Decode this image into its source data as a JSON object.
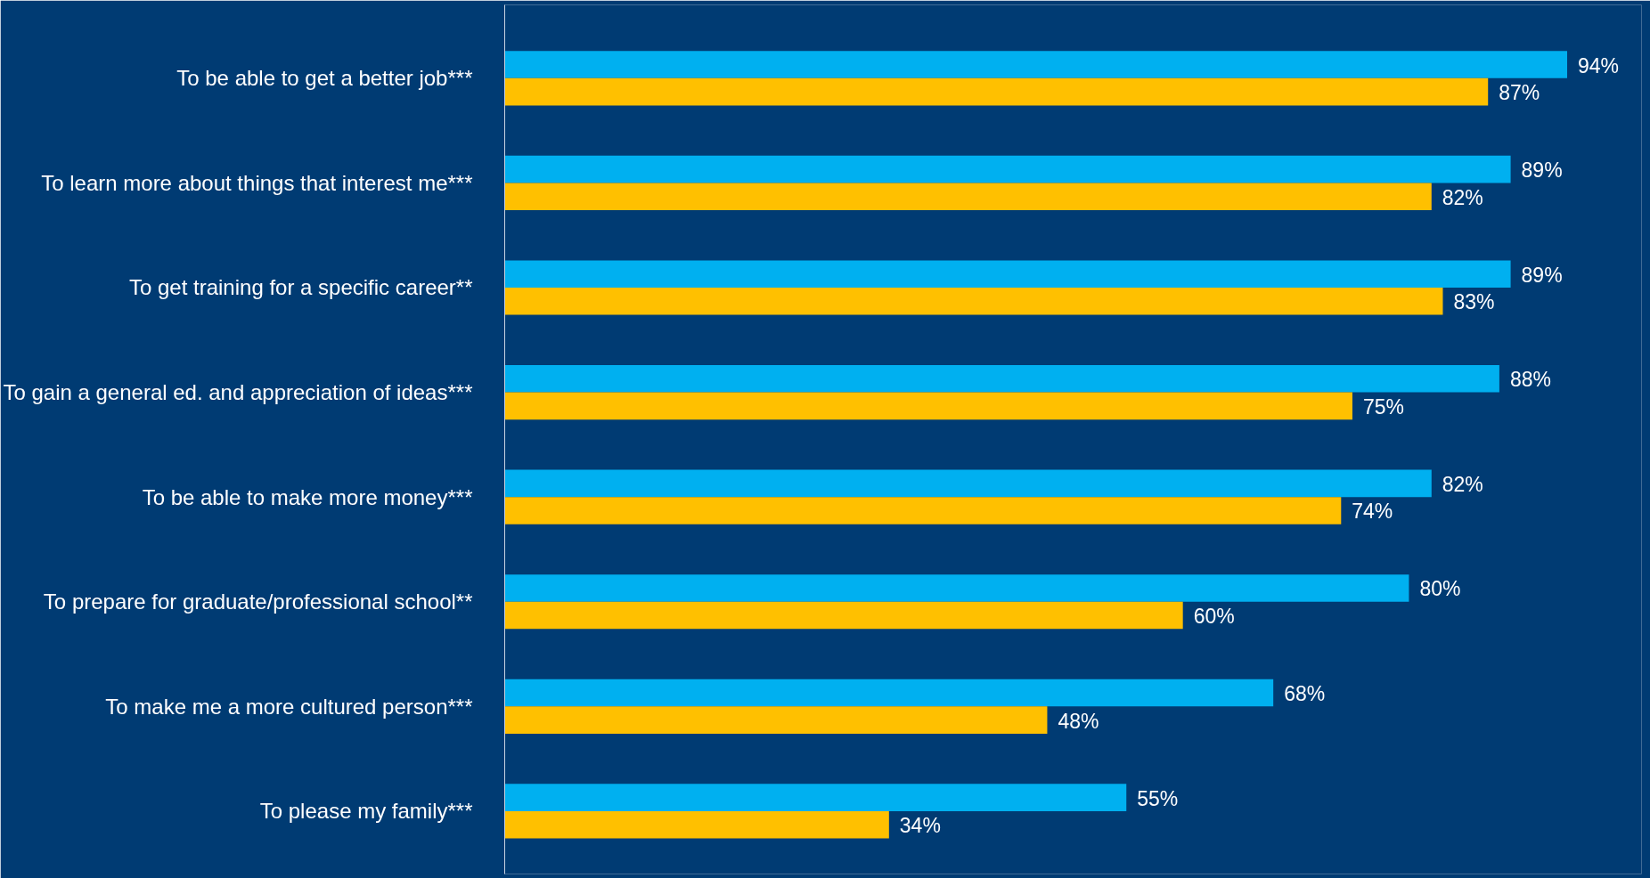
{
  "chart_data": {
    "type": "bar",
    "orientation": "horizontal",
    "categories": [
      "To be able to get a better job***",
      "To learn more about things that interest me***",
      "To get training for a specific career**",
      "To gain a general ed. and appreciation of ideas***",
      "To be able to make more money***",
      "To prepare for graduate/professional school**",
      "To make me a more cultured person***",
      "To please my family***"
    ],
    "series": [
      {
        "color": "#00b0f0",
        "values": [
          94,
          89,
          89,
          88,
          82,
          80,
          68,
          55
        ],
        "value_labels": [
          "94%",
          "89%",
          "89%",
          "88%",
          "82%",
          "80%",
          "68%",
          "55%"
        ]
      },
      {
        "color": "#ffc000",
        "values": [
          87,
          82,
          83,
          75,
          74,
          60,
          48,
          34
        ],
        "value_labels": [
          "87%",
          "82%",
          "83%",
          "75%",
          "74%",
          "60%",
          "48%",
          "34%"
        ]
      }
    ],
    "tick_labels": "y",
    "grid": false
  }
}
